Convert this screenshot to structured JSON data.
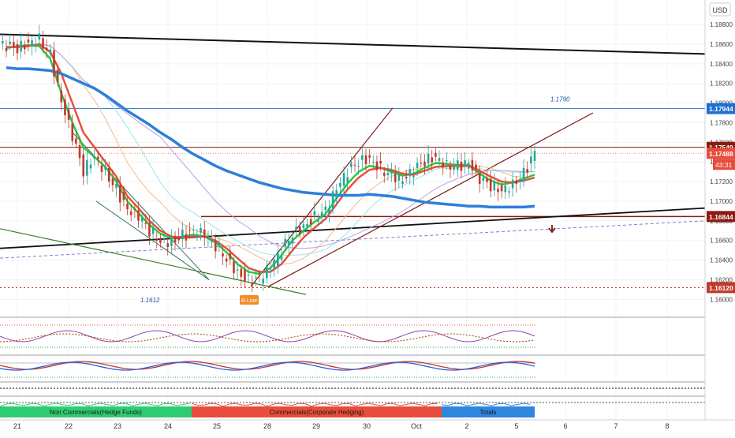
{
  "currency_label": "USD",
  "last_price": "1.17488",
  "countdown": "43:31",
  "chart_data": {
    "type": "line",
    "instrument_currency": "USD",
    "ylim": [
      1.1585,
      1.1905
    ],
    "y_ticks": [
      "1.18800",
      "1.18600",
      "1.18400",
      "1.18200",
      "1.18000",
      "1.17800",
      "1.17600",
      "1.17400",
      "1.17200",
      "1.17000",
      "1.16800",
      "1.16600",
      "1.16400",
      "1.16200",
      "1.16000"
    ],
    "x_ticks": [
      "21",
      "22",
      "23",
      "24",
      "25",
      "28",
      "29",
      "30",
      "Oct",
      "2",
      "5",
      "6",
      "7",
      "8"
    ],
    "price_tags": [
      {
        "label": "1.17944",
        "value": 1.17944,
        "color": "#1e6fd0"
      },
      {
        "label": "1.17549",
        "value": 1.17549,
        "color": "#8b1a10"
      },
      {
        "label": "1.17488",
        "value": 1.17488,
        "color": "#e74c3c"
      },
      {
        "label": "1.16844",
        "value": 1.16844,
        "color": "#8b1a10"
      },
      {
        "label": "1.16120",
        "value": 1.1612,
        "color": "#c0392b"
      }
    ],
    "annotations": [
      "1.1790",
      "1.1612",
      "B-Line"
    ],
    "series": [
      {
        "values": [
          1.1858,
          1.1856,
          1.1862,
          1.1866,
          1.1849,
          1.18,
          1.1766,
          1.1731,
          1.1747,
          1.173,
          1.1712,
          1.169,
          1.1684,
          1.167,
          1.166,
          1.1659,
          1.1665,
          1.1668,
          1.1666,
          1.1655,
          1.1642,
          1.1628,
          1.1619,
          1.1621,
          1.1633,
          1.165,
          1.1667,
          1.1675,
          1.1684,
          1.169,
          1.1712,
          1.173,
          1.1741,
          1.1744,
          1.1733,
          1.1727,
          1.172,
          1.1731,
          1.1741,
          1.1746,
          1.1737,
          1.1736,
          1.1738,
          1.1722,
          1.1716,
          1.1712,
          1.1718,
          1.1728,
          1.1749
        ]
      }
    ],
    "moving_averages": [
      {
        "color": "#27c93f",
        "values": [
          1.1856,
          1.1858,
          1.1859,
          1.1858,
          1.1845,
          1.181,
          1.178,
          1.1755,
          1.1745,
          1.1735,
          1.172,
          1.17,
          1.1688,
          1.1676,
          1.1667,
          1.1662,
          1.1664,
          1.1666,
          1.1664,
          1.1658,
          1.1648,
          1.1636,
          1.1628,
          1.1626,
          1.1632,
          1.1645,
          1.166,
          1.167,
          1.1679,
          1.1687,
          1.1703,
          1.1718,
          1.173,
          1.1736,
          1.1734,
          1.173,
          1.1726,
          1.1728,
          1.1734,
          1.1739,
          1.1738,
          1.1737,
          1.1737,
          1.1728,
          1.1721,
          1.1717,
          1.1719,
          1.1723,
          1.1727
        ]
      },
      {
        "color": "#e74c3c",
        "values": [
          1.1857,
          1.1857,
          1.1858,
          1.186,
          1.1852,
          1.183,
          1.18,
          1.177,
          1.1755,
          1.174,
          1.1725,
          1.1705,
          1.1693,
          1.168,
          1.167,
          1.1664,
          1.1663,
          1.1664,
          1.1664,
          1.166,
          1.1652,
          1.1642,
          1.1632,
          1.1628,
          1.1628,
          1.1636,
          1.165,
          1.1663,
          1.1673,
          1.1682,
          1.1697,
          1.1712,
          1.1724,
          1.1732,
          1.1734,
          1.1732,
          1.1728,
          1.1727,
          1.1731,
          1.1735,
          1.1736,
          1.1736,
          1.1736,
          1.1731,
          1.1725,
          1.172,
          1.1719,
          1.1721,
          1.1724
        ]
      },
      {
        "color": "#2e7fd8",
        "values": [
          1.1836,
          1.1835,
          1.1835,
          1.1834,
          1.1833,
          1.183,
          1.1825,
          1.182,
          1.1815,
          1.1808,
          1.18,
          1.1792,
          1.1785,
          1.1778,
          1.177,
          1.1763,
          1.1755,
          1.1748,
          1.1742,
          1.1736,
          1.1731,
          1.1727,
          1.1723,
          1.1719,
          1.1716,
          1.1713,
          1.1711,
          1.1709,
          1.1708,
          1.1707,
          1.1706,
          1.1706,
          1.1706,
          1.1707,
          1.1706,
          1.1705,
          1.1703,
          1.1701,
          1.1699,
          1.1698,
          1.1697,
          1.1696,
          1.1695,
          1.1695,
          1.1694,
          1.1694,
          1.1694,
          1.1694,
          1.1695
        ]
      }
    ],
    "oscillators": [
      {
        "name": "Non Commercials(Hedge Funds)",
        "color": "#2ecc71"
      },
      {
        "name": "Commercials(Corporate Hedging)",
        "color": "#e74c3c"
      },
      {
        "name": "Totals",
        "color": "#2e86de"
      }
    ],
    "indicator_ticks": [
      "0.00000",
      "0.00000",
      "0.00000",
      "8.00000"
    ]
  }
}
